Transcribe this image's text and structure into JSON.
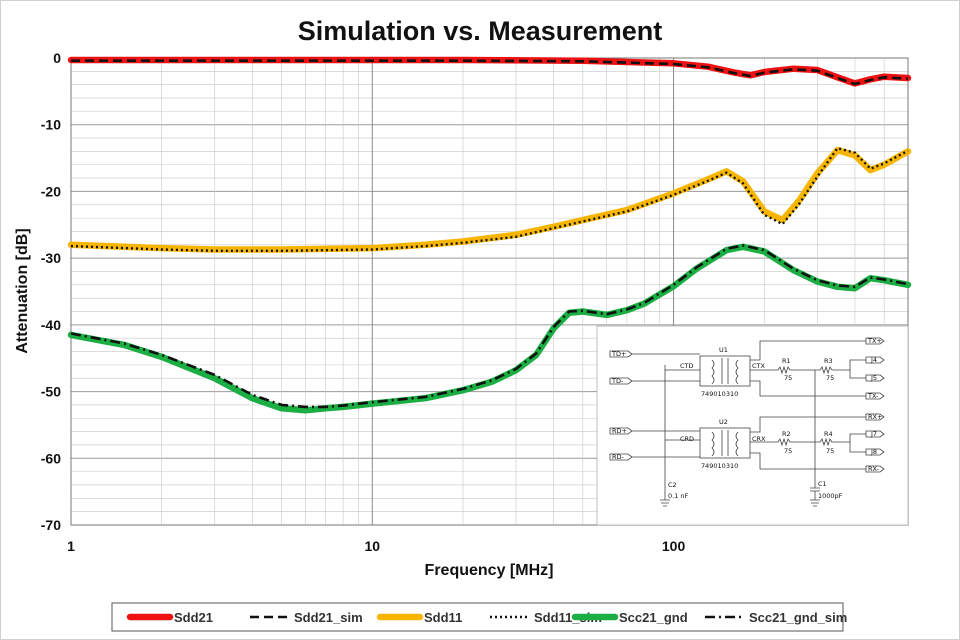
{
  "chart_data": {
    "type": "line",
    "title": "Simulation vs. Measurement",
    "xlabel": "Frequency [MHz]",
    "ylabel": "Attenuation  [dB]",
    "xscale": "log",
    "xlim": [
      1,
      600
    ],
    "ylim": [
      -70,
      0
    ],
    "xticks": [
      1,
      10,
      100
    ],
    "xtick_labels": [
      "1",
      "10",
      "100"
    ],
    "yticks": [
      0,
      -10,
      -20,
      -30,
      -40,
      -50,
      -60,
      -70
    ],
    "ytick_labels": [
      "0",
      "-10",
      "-20",
      "-30",
      "-40",
      "-50",
      "-60",
      "-70"
    ],
    "grid": true,
    "legend_position": "bottom",
    "series": [
      {
        "name": "Sdd21",
        "color": "#ee1111",
        "style": "solid",
        "x": [
          1,
          2,
          5,
          10,
          20,
          50,
          100,
          130,
          160,
          180,
          200,
          250,
          300,
          350,
          400,
          450,
          500,
          600
        ],
        "y": [
          -0.3,
          -0.3,
          -0.3,
          -0.3,
          -0.3,
          -0.4,
          -0.8,
          -1.3,
          -2.2,
          -2.6,
          -2.1,
          -1.6,
          -1.8,
          -2.9,
          -3.8,
          -3.2,
          -2.8,
          -3.0
        ]
      },
      {
        "name": "Sdd21_sim",
        "color": "#111111",
        "style": "dash",
        "x": [
          1,
          2,
          5,
          10,
          20,
          50,
          100,
          130,
          160,
          180,
          200,
          250,
          300,
          350,
          400,
          450,
          500,
          600
        ],
        "y": [
          -0.4,
          -0.4,
          -0.4,
          -0.4,
          -0.4,
          -0.5,
          -0.9,
          -1.4,
          -2.3,
          -2.7,
          -2.2,
          -1.7,
          -1.9,
          -3.0,
          -3.9,
          -3.3,
          -2.9,
          -3.1
        ]
      },
      {
        "name": "Sdd11",
        "color": "#f7b500",
        "style": "solid",
        "x": [
          1,
          2,
          3,
          5,
          10,
          15,
          20,
          30,
          40,
          50,
          70,
          100,
          130,
          150,
          170,
          200,
          230,
          260,
          300,
          350,
          400,
          450,
          500,
          600
        ],
        "y": [
          -28.0,
          -28.5,
          -28.7,
          -28.7,
          -28.5,
          -28.0,
          -27.5,
          -26.5,
          -25.3,
          -24.3,
          -22.8,
          -20.3,
          -18.2,
          -17.0,
          -18.5,
          -23.0,
          -24.3,
          -21.5,
          -17.3,
          -13.8,
          -14.6,
          -16.8,
          -16.0,
          -14.0
        ]
      },
      {
        "name": "Sdd11_sim",
        "color": "#111111",
        "style": "dot",
        "x": [
          1,
          2,
          3,
          5,
          10,
          15,
          20,
          30,
          40,
          50,
          70,
          100,
          130,
          150,
          170,
          200,
          230,
          260,
          300,
          350,
          400,
          450,
          500,
          600
        ],
        "y": [
          -28.2,
          -28.7,
          -28.9,
          -28.9,
          -28.7,
          -28.2,
          -27.7,
          -26.8,
          -25.5,
          -24.5,
          -23.0,
          -20.5,
          -18.4,
          -17.2,
          -18.8,
          -23.5,
          -24.9,
          -22.0,
          -17.8,
          -13.5,
          -14.2,
          -16.6,
          -15.8,
          -13.9
        ]
      },
      {
        "name": "Scc21_gnd",
        "color": "#1bae43",
        "style": "solid",
        "x": [
          1,
          1.5,
          2,
          3,
          4,
          5,
          6,
          7,
          8,
          10,
          15,
          20,
          25,
          30,
          35,
          40,
          45,
          50,
          60,
          70,
          80,
          100,
          120,
          150,
          170,
          200,
          250,
          300,
          350,
          400,
          450,
          500,
          600
        ],
        "y": [
          -41.5,
          -43.0,
          -44.8,
          -48.0,
          -51.0,
          -52.5,
          -52.8,
          -52.5,
          -52.3,
          -51.8,
          -51.0,
          -49.8,
          -48.5,
          -46.8,
          -44.5,
          -40.5,
          -38.2,
          -38.0,
          -38.5,
          -37.8,
          -36.8,
          -34.2,
          -31.5,
          -28.8,
          -28.3,
          -29.0,
          -31.8,
          -33.5,
          -34.3,
          -34.5,
          -33.0,
          -33.3,
          -34.0
        ]
      },
      {
        "name": "Scc21_gnd_sim",
        "color": "#111111",
        "style": "dashdot",
        "x": [
          1,
          1.5,
          2,
          3,
          4,
          5,
          6,
          7,
          8,
          10,
          15,
          20,
          25,
          30,
          35,
          40,
          45,
          50,
          60,
          70,
          80,
          100,
          120,
          150,
          170,
          200,
          250,
          300,
          350,
          400,
          450,
          500,
          600
        ],
        "y": [
          -41.3,
          -42.8,
          -44.5,
          -47.5,
          -50.5,
          -52.0,
          -52.3,
          -52.3,
          -52.1,
          -51.6,
          -50.8,
          -49.6,
          -48.3,
          -46.6,
          -44.3,
          -40.3,
          -38.0,
          -37.9,
          -38.4,
          -37.7,
          -36.7,
          -34.0,
          -31.3,
          -28.6,
          -28.1,
          -28.8,
          -31.6,
          -33.3,
          -34.1,
          -34.3,
          -32.9,
          -33.2,
          -33.9
        ]
      }
    ]
  },
  "schematic": {
    "ports_left": [
      "TD+",
      "TD-",
      "RD+",
      "RD-"
    ],
    "ports_right": [
      "TX+",
      "J4",
      "J5",
      "TX-",
      "RX+",
      "J7",
      "J8",
      "RX-"
    ],
    "transformers": [
      {
        "ref": "U1",
        "part": "749010310",
        "center_tap": "CTD",
        "ct_right": "CTX"
      },
      {
        "ref": "U2",
        "part": "749010310",
        "center_tap": "CRD",
        "ct_right": "CRX"
      }
    ],
    "resistors": [
      {
        "ref": "R1",
        "value": "75"
      },
      {
        "ref": "R3",
        "value": "75"
      },
      {
        "ref": "R2",
        "value": "75"
      },
      {
        "ref": "R4",
        "value": "75"
      }
    ],
    "capacitors": [
      {
        "ref": "C2",
        "value": "0.1 nF"
      },
      {
        "ref": "C1",
        "value": "1000pF"
      }
    ]
  }
}
